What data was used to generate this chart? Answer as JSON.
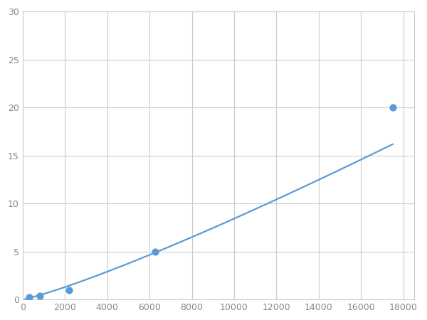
{
  "x": [
    300,
    800,
    2200,
    6250,
    17500
  ],
  "y": [
    0.2,
    0.35,
    1.0,
    5.0,
    20.0
  ],
  "line_color": "#5B9BD5",
  "marker_color": "#5B9BD5",
  "marker_size": 6,
  "line_width": 1.6,
  "xlim": [
    0,
    18500
  ],
  "ylim": [
    0,
    30
  ],
  "xticks": [
    0,
    2000,
    4000,
    6000,
    8000,
    10000,
    12000,
    14000,
    16000,
    18000
  ],
  "yticks": [
    0,
    5,
    10,
    15,
    20,
    25,
    30
  ],
  "grid_color": "#CCCCCC",
  "background_color": "#FFFFFF",
  "figure_bg": "#FFFFFF"
}
